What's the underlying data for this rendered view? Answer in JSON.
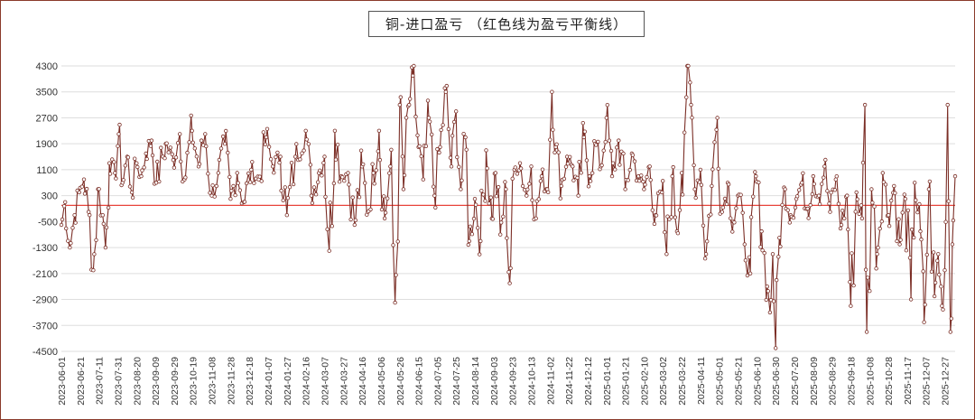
{
  "chart_data": {
    "type": "line",
    "title": "铜-进口盈亏 （红色线为盈亏平衡线）",
    "xlabel": "",
    "ylabel": "",
    "ylim": [
      -4500,
      4300
    ],
    "y_ticks": [
      4300,
      3500,
      2700,
      1900,
      1100,
      300,
      -500,
      -1300,
      -2100,
      -2900,
      -3700,
      -4500
    ],
    "x_ticks": [
      "2023-06-01",
      "2023-06-21",
      "2023-07-11",
      "2023-07-31",
      "2023-08-20",
      "2023-09-09",
      "2023-09-29",
      "2023-10-19",
      "2023-11-08",
      "2023-11-28",
      "2023-12-18",
      "2024-01-07",
      "2024-01-27",
      "2024-02-16",
      "2024-03-07",
      "2024-03-27",
      "2024-04-16",
      "2024-05-06",
      "2024-05-26",
      "2024-06-15",
      "2024-07-05",
      "2024-07-25",
      "2024-08-14",
      "2024-09-03",
      "2024-09-23",
      "2024-10-13",
      "2024-11-02",
      "2024-11-22",
      "2024-12-12",
      "2025-01-01",
      "2025-01-21",
      "2025-02-10",
      "2025-03-02",
      "2025-03-22",
      "2025-04-11",
      "2025-05-01",
      "2025-05-21",
      "2025-06-10",
      "2025-06-30",
      "2025-07-20",
      "2025-08-09",
      "2025-08-29",
      "2025-09-18",
      "2025-10-08",
      "2025-10-28",
      "2025-11-17",
      "2025-12-07",
      "2025-12-27"
    ],
    "x_range": [
      "2023-06-01",
      "2026-01-07"
    ],
    "breakeven_line": 0,
    "grid": true,
    "legend": "none",
    "colors": {
      "series": "#7b2e26",
      "breakeven": "#e8433a",
      "grid": "#dedede"
    },
    "series": [
      {
        "key_points": [
          [
            "2023-06-01",
            -600
          ],
          [
            "2023-06-05",
            100
          ],
          [
            "2023-06-10",
            -1300
          ],
          [
            "2023-06-15",
            -300
          ],
          [
            "2023-06-20",
            400
          ],
          [
            "2023-06-25",
            800
          ],
          [
            "2023-06-30",
            -200
          ],
          [
            "2023-07-05",
            -2000
          ],
          [
            "2023-07-10",
            500
          ],
          [
            "2023-07-15",
            -300
          ],
          [
            "2023-07-18",
            -1300
          ],
          [
            "2023-07-22",
            1300
          ],
          [
            "2023-07-28",
            1000
          ],
          [
            "2023-08-01",
            2200
          ],
          [
            "2023-08-05",
            700
          ],
          [
            "2023-08-10",
            1500
          ],
          [
            "2023-08-15",
            400
          ],
          [
            "2023-08-20",
            1300
          ],
          [
            "2023-08-25",
            900
          ],
          [
            "2023-08-30",
            1600
          ],
          [
            "2023-09-05",
            2000
          ],
          [
            "2023-09-10",
            700
          ],
          [
            "2023-09-20",
            1900
          ],
          [
            "2023-09-28",
            1400
          ],
          [
            "2023-10-05",
            2200
          ],
          [
            "2023-10-10",
            800
          ],
          [
            "2023-10-18",
            2300
          ],
          [
            "2023-10-25",
            1200
          ],
          [
            "2023-11-01",
            2200
          ],
          [
            "2023-11-08",
            300
          ],
          [
            "2023-11-15",
            1000
          ],
          [
            "2023-11-22",
            1900
          ],
          [
            "2023-11-28",
            200
          ],
          [
            "2023-12-05",
            1000
          ],
          [
            "2023-12-12",
            100
          ],
          [
            "2023-12-20",
            1100
          ],
          [
            "2023-12-28",
            800
          ],
          [
            "2024-01-05",
            2100
          ],
          [
            "2024-01-12",
            1200
          ],
          [
            "2024-01-20",
            1500
          ],
          [
            "2024-01-27",
            -300
          ],
          [
            "2024-02-05",
            1500
          ],
          [
            "2024-02-16",
            2300
          ],
          [
            "2024-02-22",
            300
          ],
          [
            "2024-03-01",
            1000
          ],
          [
            "2024-03-07",
            1500
          ],
          [
            "2024-03-12",
            -1400
          ],
          [
            "2024-03-18",
            2300
          ],
          [
            "2024-03-25",
            900
          ],
          [
            "2024-04-01",
            1000
          ],
          [
            "2024-04-08",
            -600
          ],
          [
            "2024-04-16",
            1200
          ],
          [
            "2024-04-22",
            -200
          ],
          [
            "2024-04-28",
            1000
          ],
          [
            "2024-05-04",
            2300
          ],
          [
            "2024-05-10",
            -400
          ],
          [
            "2024-05-16",
            1200
          ],
          [
            "2024-05-21",
            -3000
          ],
          [
            "2024-05-26",
            3100
          ],
          [
            "2024-05-30",
            500
          ],
          [
            "2024-06-05",
            3100
          ],
          [
            "2024-06-09",
            4000
          ],
          [
            "2024-06-15",
            1800
          ],
          [
            "2024-06-20",
            800
          ],
          [
            "2024-06-26",
            2700
          ],
          [
            "2024-07-02",
            300
          ],
          [
            "2024-07-08",
            1800
          ],
          [
            "2024-07-14",
            3500
          ],
          [
            "2024-07-20",
            1200
          ],
          [
            "2024-07-25",
            2900
          ],
          [
            "2024-07-30",
            500
          ],
          [
            "2024-08-04",
            2100
          ],
          [
            "2024-08-08",
            -1100
          ],
          [
            "2024-08-14",
            200
          ],
          [
            "2024-08-20",
            -1100
          ],
          [
            "2024-08-26",
            1700
          ],
          [
            "2024-09-01",
            -400
          ],
          [
            "2024-09-05",
            1000
          ],
          [
            "2024-09-10",
            -900
          ],
          [
            "2024-09-16",
            500
          ],
          [
            "2024-09-20",
            -2400
          ],
          [
            "2024-09-25",
            1100
          ],
          [
            "2024-10-01",
            1300
          ],
          [
            "2024-10-08",
            300
          ],
          [
            "2024-10-13",
            1200
          ],
          [
            "2024-10-18",
            -400
          ],
          [
            "2024-10-24",
            900
          ],
          [
            "2024-10-30",
            500
          ],
          [
            "2024-11-04",
            3500
          ],
          [
            "2024-11-08",
            1800
          ],
          [
            "2024-11-14",
            600
          ],
          [
            "2024-11-20",
            1500
          ],
          [
            "2024-11-26",
            1200
          ],
          [
            "2024-12-02",
            300
          ],
          [
            "2024-12-08",
            2100
          ],
          [
            "2024-12-14",
            900
          ],
          [
            "2024-12-20",
            1900
          ],
          [
            "2024-12-26",
            1200
          ],
          [
            "2025-01-01",
            2700
          ],
          [
            "2025-01-07",
            900
          ],
          [
            "2025-01-14",
            2000
          ],
          [
            "2025-01-21",
            500
          ],
          [
            "2025-01-28",
            1600
          ],
          [
            "2025-02-04",
            900
          ],
          [
            "2025-02-10",
            500
          ],
          [
            "2025-02-16",
            1200
          ],
          [
            "2025-02-22",
            -300
          ],
          [
            "2025-03-01",
            400
          ],
          [
            "2025-03-06",
            -1500
          ],
          [
            "2025-03-12",
            900
          ],
          [
            "2025-03-17",
            -800
          ],
          [
            "2025-03-22",
            1000
          ],
          [
            "2025-03-28",
            4300
          ],
          [
            "2025-04-01",
            3100
          ],
          [
            "2025-04-05",
            500
          ],
          [
            "2025-04-11",
            1100
          ],
          [
            "2025-04-17",
            -1500
          ],
          [
            "2025-04-23",
            600
          ],
          [
            "2025-04-29",
            2700
          ],
          [
            "2025-05-04",
            -200
          ],
          [
            "2025-05-10",
            700
          ],
          [
            "2025-05-16",
            -500
          ],
          [
            "2025-05-21",
            300
          ],
          [
            "2025-05-28",
            -1200
          ],
          [
            "2025-06-03",
            -2100
          ],
          [
            "2025-06-09",
            900
          ],
          [
            "2025-06-15",
            -800
          ],
          [
            "2025-06-21",
            -2500
          ],
          [
            "2025-06-24",
            -3300
          ],
          [
            "2025-06-27",
            -1500
          ],
          [
            "2025-06-30",
            -4400
          ],
          [
            "2025-07-04",
            -1000
          ],
          [
            "2025-07-10",
            500
          ],
          [
            "2025-07-16",
            -300
          ],
          [
            "2025-07-22",
            200
          ],
          [
            "2025-07-28",
            700
          ],
          [
            "2025-08-03",
            -100
          ],
          [
            "2025-08-09",
            900
          ],
          [
            "2025-08-15",
            300
          ],
          [
            "2025-08-21",
            1200
          ],
          [
            "2025-08-27",
            -200
          ],
          [
            "2025-09-02",
            800
          ],
          [
            "2025-09-08",
            -600
          ],
          [
            "2025-09-14",
            300
          ],
          [
            "2025-09-18",
            -3100
          ],
          [
            "2025-09-24",
            400
          ],
          [
            "2025-09-30",
            -400
          ],
          [
            "2025-10-03",
            3100
          ],
          [
            "2025-10-05",
            -3900
          ],
          [
            "2025-10-10",
            500
          ],
          [
            "2025-10-16",
            -1500
          ],
          [
            "2025-10-22",
            1000
          ],
          [
            "2025-10-28",
            -300
          ],
          [
            "2025-11-03",
            600
          ],
          [
            "2025-11-09",
            -1200
          ],
          [
            "2025-11-15",
            200
          ],
          [
            "2025-11-21",
            -2900
          ],
          [
            "2025-11-25",
            700
          ],
          [
            "2025-12-01",
            -800
          ],
          [
            "2025-12-05",
            -3600
          ],
          [
            "2025-12-10",
            500
          ],
          [
            "2025-12-16",
            -2800
          ],
          [
            "2025-12-20",
            -1500
          ],
          [
            "2025-12-24",
            -3100
          ],
          [
            "2025-12-27",
            -2000
          ],
          [
            "2025-12-30",
            3100
          ],
          [
            "2026-01-02",
            -3900
          ],
          [
            "2026-01-04",
            -1200
          ],
          [
            "2026-01-07",
            900
          ]
        ]
      }
    ]
  }
}
